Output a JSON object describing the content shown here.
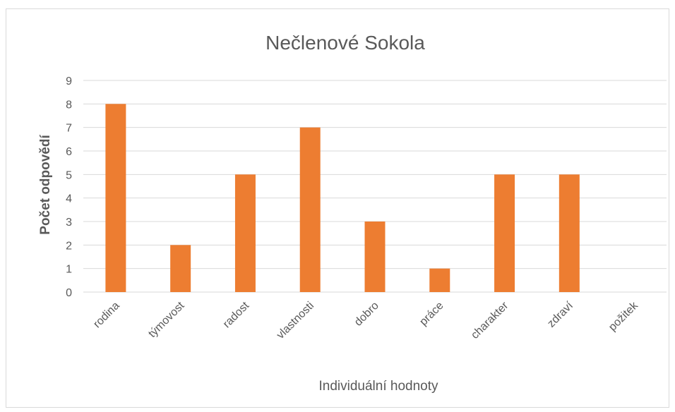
{
  "chart_data": {
    "type": "bar",
    "title": "Nečlenové Sokola",
    "xlabel": "Individuální hodnoty",
    "ylabel": "Počet odpovědí",
    "categories": [
      "rodina",
      "týmovost",
      "radost",
      "vlastnosti",
      "dobro",
      "práce",
      "charakter",
      "zdraví",
      "požitek"
    ],
    "values": [
      8,
      2,
      5,
      7,
      3,
      1,
      5,
      5,
      0
    ],
    "ylim": [
      0,
      9
    ],
    "yticks": [
      0,
      1,
      2,
      3,
      4,
      5,
      6,
      7,
      8,
      9
    ],
    "grid": true,
    "legend": "none",
    "bar_color": "#ED7D31",
    "grid_color": "#d9d9d9"
  }
}
